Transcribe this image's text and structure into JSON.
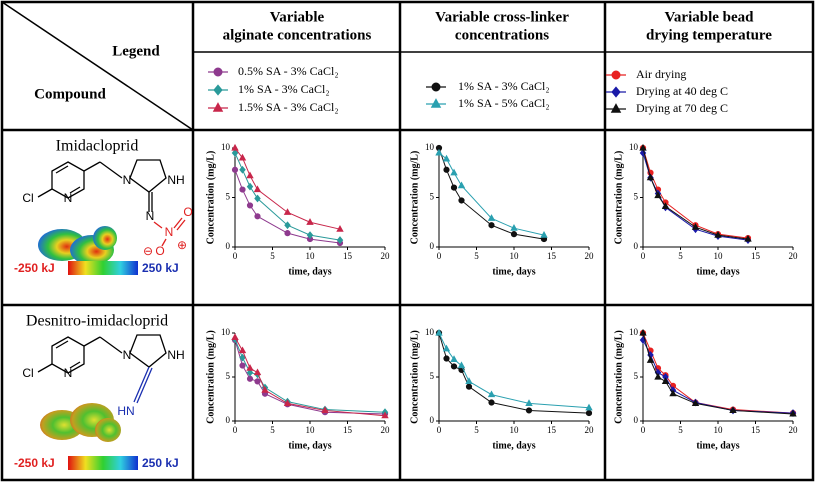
{
  "header": {
    "legend_label": "Legend",
    "compound_label": "Compound"
  },
  "columns": [
    {
      "title_lines": [
        "Variable",
        "alginate concentrations"
      ],
      "legend": [
        {
          "name": "0.5% SA - 3% CaCl₂",
          "color": "#8e3a8e",
          "marker": "circle"
        },
        {
          "name": "1% SA - 3% CaCl₂",
          "color": "#2a9a9a",
          "marker": "diamond"
        },
        {
          "name": "1.5% SA - 3% CaCl₂",
          "color": "#c8264a",
          "marker": "triangle"
        }
      ]
    },
    {
      "title_lines": [
        "Variable cross-linker",
        "concentrations"
      ],
      "legend": [
        {
          "name": "1% SA - 3% CaCl₂",
          "color": "#111111",
          "marker": "circle"
        },
        {
          "name": "1% SA - 5% CaCl₂",
          "color": "#2aa0b0",
          "marker": "triangle"
        }
      ]
    },
    {
      "title_lines": [
        "Variable bead",
        "drying temperature"
      ],
      "legend": [
        {
          "name": "Air drying",
          "color": "#e82020",
          "marker": "circle"
        },
        {
          "name": "Drying at 40 deg C",
          "color": "#1a1aa8",
          "marker": "diamond"
        },
        {
          "name": "Drying at 70 deg C",
          "color": "#111111",
          "marker": "triangle"
        }
      ]
    }
  ],
  "rows": [
    {
      "compound": "Imidacloprid",
      "atoms": [
        "Cl",
        "N",
        "N",
        "NH",
        "N",
        "N",
        "O",
        "O",
        "⊖",
        "⊕"
      ],
      "scale": [
        "-250 kJ",
        "250 kJ"
      ],
      "charts": [
        {
          "type": "line",
          "ylabel": "Concentration (mg/L)",
          "xlabel": "time, days",
          "xlim": [
            0,
            20
          ],
          "ylim": [
            0,
            10
          ],
          "xticks": [
            0,
            5,
            10,
            15,
            20
          ],
          "yticks": [
            0,
            5,
            10
          ],
          "x": [
            0,
            1,
            2,
            3,
            7,
            10,
            14
          ],
          "series": [
            {
              "values": [
                7.8,
                5.8,
                4.2,
                3.1,
                1.4,
                0.8,
                0.4
              ]
            },
            {
              "values": [
                9.5,
                7.8,
                6.1,
                4.9,
                2.2,
                1.2,
                0.7
              ]
            },
            {
              "values": [
                10,
                9,
                7.2,
                5.8,
                3.5,
                2.5,
                1.8
              ]
            }
          ]
        },
        {
          "type": "line",
          "ylabel": "Concentration (mg/L)",
          "xlabel": "time, days",
          "xlim": [
            0,
            20
          ],
          "ylim": [
            0,
            10
          ],
          "xticks": [
            0,
            5,
            10,
            15,
            20
          ],
          "yticks": [
            0,
            5,
            10
          ],
          "x": [
            0,
            1,
            2,
            3,
            7,
            10,
            14
          ],
          "series": [
            {
              "values": [
                10,
                7.8,
                6,
                4.7,
                2.2,
                1.3,
                0.8
              ]
            },
            {
              "values": [
                9.5,
                8.9,
                7.5,
                6.2,
                2.9,
                1.9,
                1.2
              ]
            }
          ]
        },
        {
          "type": "line",
          "ylabel": "Concentration (mg/L)",
          "xlabel": "time, days",
          "xlim": [
            0,
            20
          ],
          "ylim": [
            0,
            10
          ],
          "xticks": [
            0,
            5,
            10,
            15,
            20
          ],
          "yticks": [
            0,
            5,
            10
          ],
          "x": [
            0,
            1,
            2,
            3,
            7,
            10,
            14
          ],
          "series": [
            {
              "values": [
                10,
                7.5,
                5.8,
                4.5,
                2.2,
                1.3,
                0.9
              ]
            },
            {
              "values": [
                9.5,
                7,
                5.4,
                4,
                1.8,
                1.1,
                0.7
              ]
            },
            {
              "values": [
                10,
                7,
                5.2,
                4.1,
                2,
                1.2,
                0.8
              ]
            }
          ]
        }
      ]
    },
    {
      "compound": "Desnitro-imidacloprid",
      "atoms": [
        "Cl",
        "N",
        "N",
        "NH",
        "HN"
      ],
      "scale": [
        "-250 kJ",
        "250 kJ"
      ],
      "charts": [
        {
          "type": "line",
          "ylabel": "Concentration (mg/L)",
          "xlabel": "time, days",
          "xlim": [
            0,
            20
          ],
          "ylim": [
            0,
            10
          ],
          "xticks": [
            0,
            5,
            10,
            15,
            20
          ],
          "yticks": [
            0,
            5,
            10
          ],
          "x": [
            0,
            1,
            2,
            3,
            4,
            7,
            12,
            20
          ],
          "series": [
            {
              "values": [
                9.2,
                6.3,
                4.8,
                4.5,
                3.1,
                1.9,
                1,
                0.8
              ]
            },
            {
              "values": [
                9.3,
                7.2,
                5.5,
                5.3,
                3.8,
                2.2,
                1.3,
                1
              ]
            },
            {
              "values": [
                9.5,
                8,
                6,
                5.5,
                3.5,
                2,
                1.2,
                0.6
              ]
            }
          ]
        },
        {
          "type": "line",
          "ylabel": "Concentration (mg/L)",
          "xlabel": "time, days",
          "xlim": [
            0,
            20
          ],
          "ylim": [
            0,
            10
          ],
          "xticks": [
            0,
            5,
            10,
            15,
            20
          ],
          "yticks": [
            0,
            5,
            10
          ],
          "x": [
            0,
            1,
            2,
            3,
            4,
            7,
            12,
            20
          ],
          "series": [
            {
              "values": [
                10,
                7.1,
                6.2,
                5.8,
                3.9,
                2.1,
                1.2,
                0.9
              ]
            },
            {
              "values": [
                10,
                8.2,
                7,
                6.3,
                4.5,
                3,
                2,
                1.5
              ]
            }
          ]
        },
        {
          "type": "line",
          "ylabel": "Concentration (mg/L)",
          "xlabel": "time, days",
          "xlim": [
            0,
            20
          ],
          "ylim": [
            0,
            10
          ],
          "xticks": [
            0,
            5,
            10,
            15,
            20
          ],
          "yticks": [
            0,
            5,
            10
          ],
          "x": [
            0,
            1,
            2,
            3,
            4,
            7,
            12,
            20
          ],
          "series": [
            {
              "values": [
                10,
                8,
                6,
                5.2,
                4,
                2.1,
                1.3,
                0.9
              ]
            },
            {
              "values": [
                9.2,
                7.5,
                5.5,
                5,
                3.5,
                2.1,
                1.2,
                0.9
              ]
            },
            {
              "values": [
                10,
                6.9,
                5,
                4.5,
                3.1,
                2,
                1.2,
                0.8
              ]
            }
          ]
        }
      ]
    }
  ]
}
